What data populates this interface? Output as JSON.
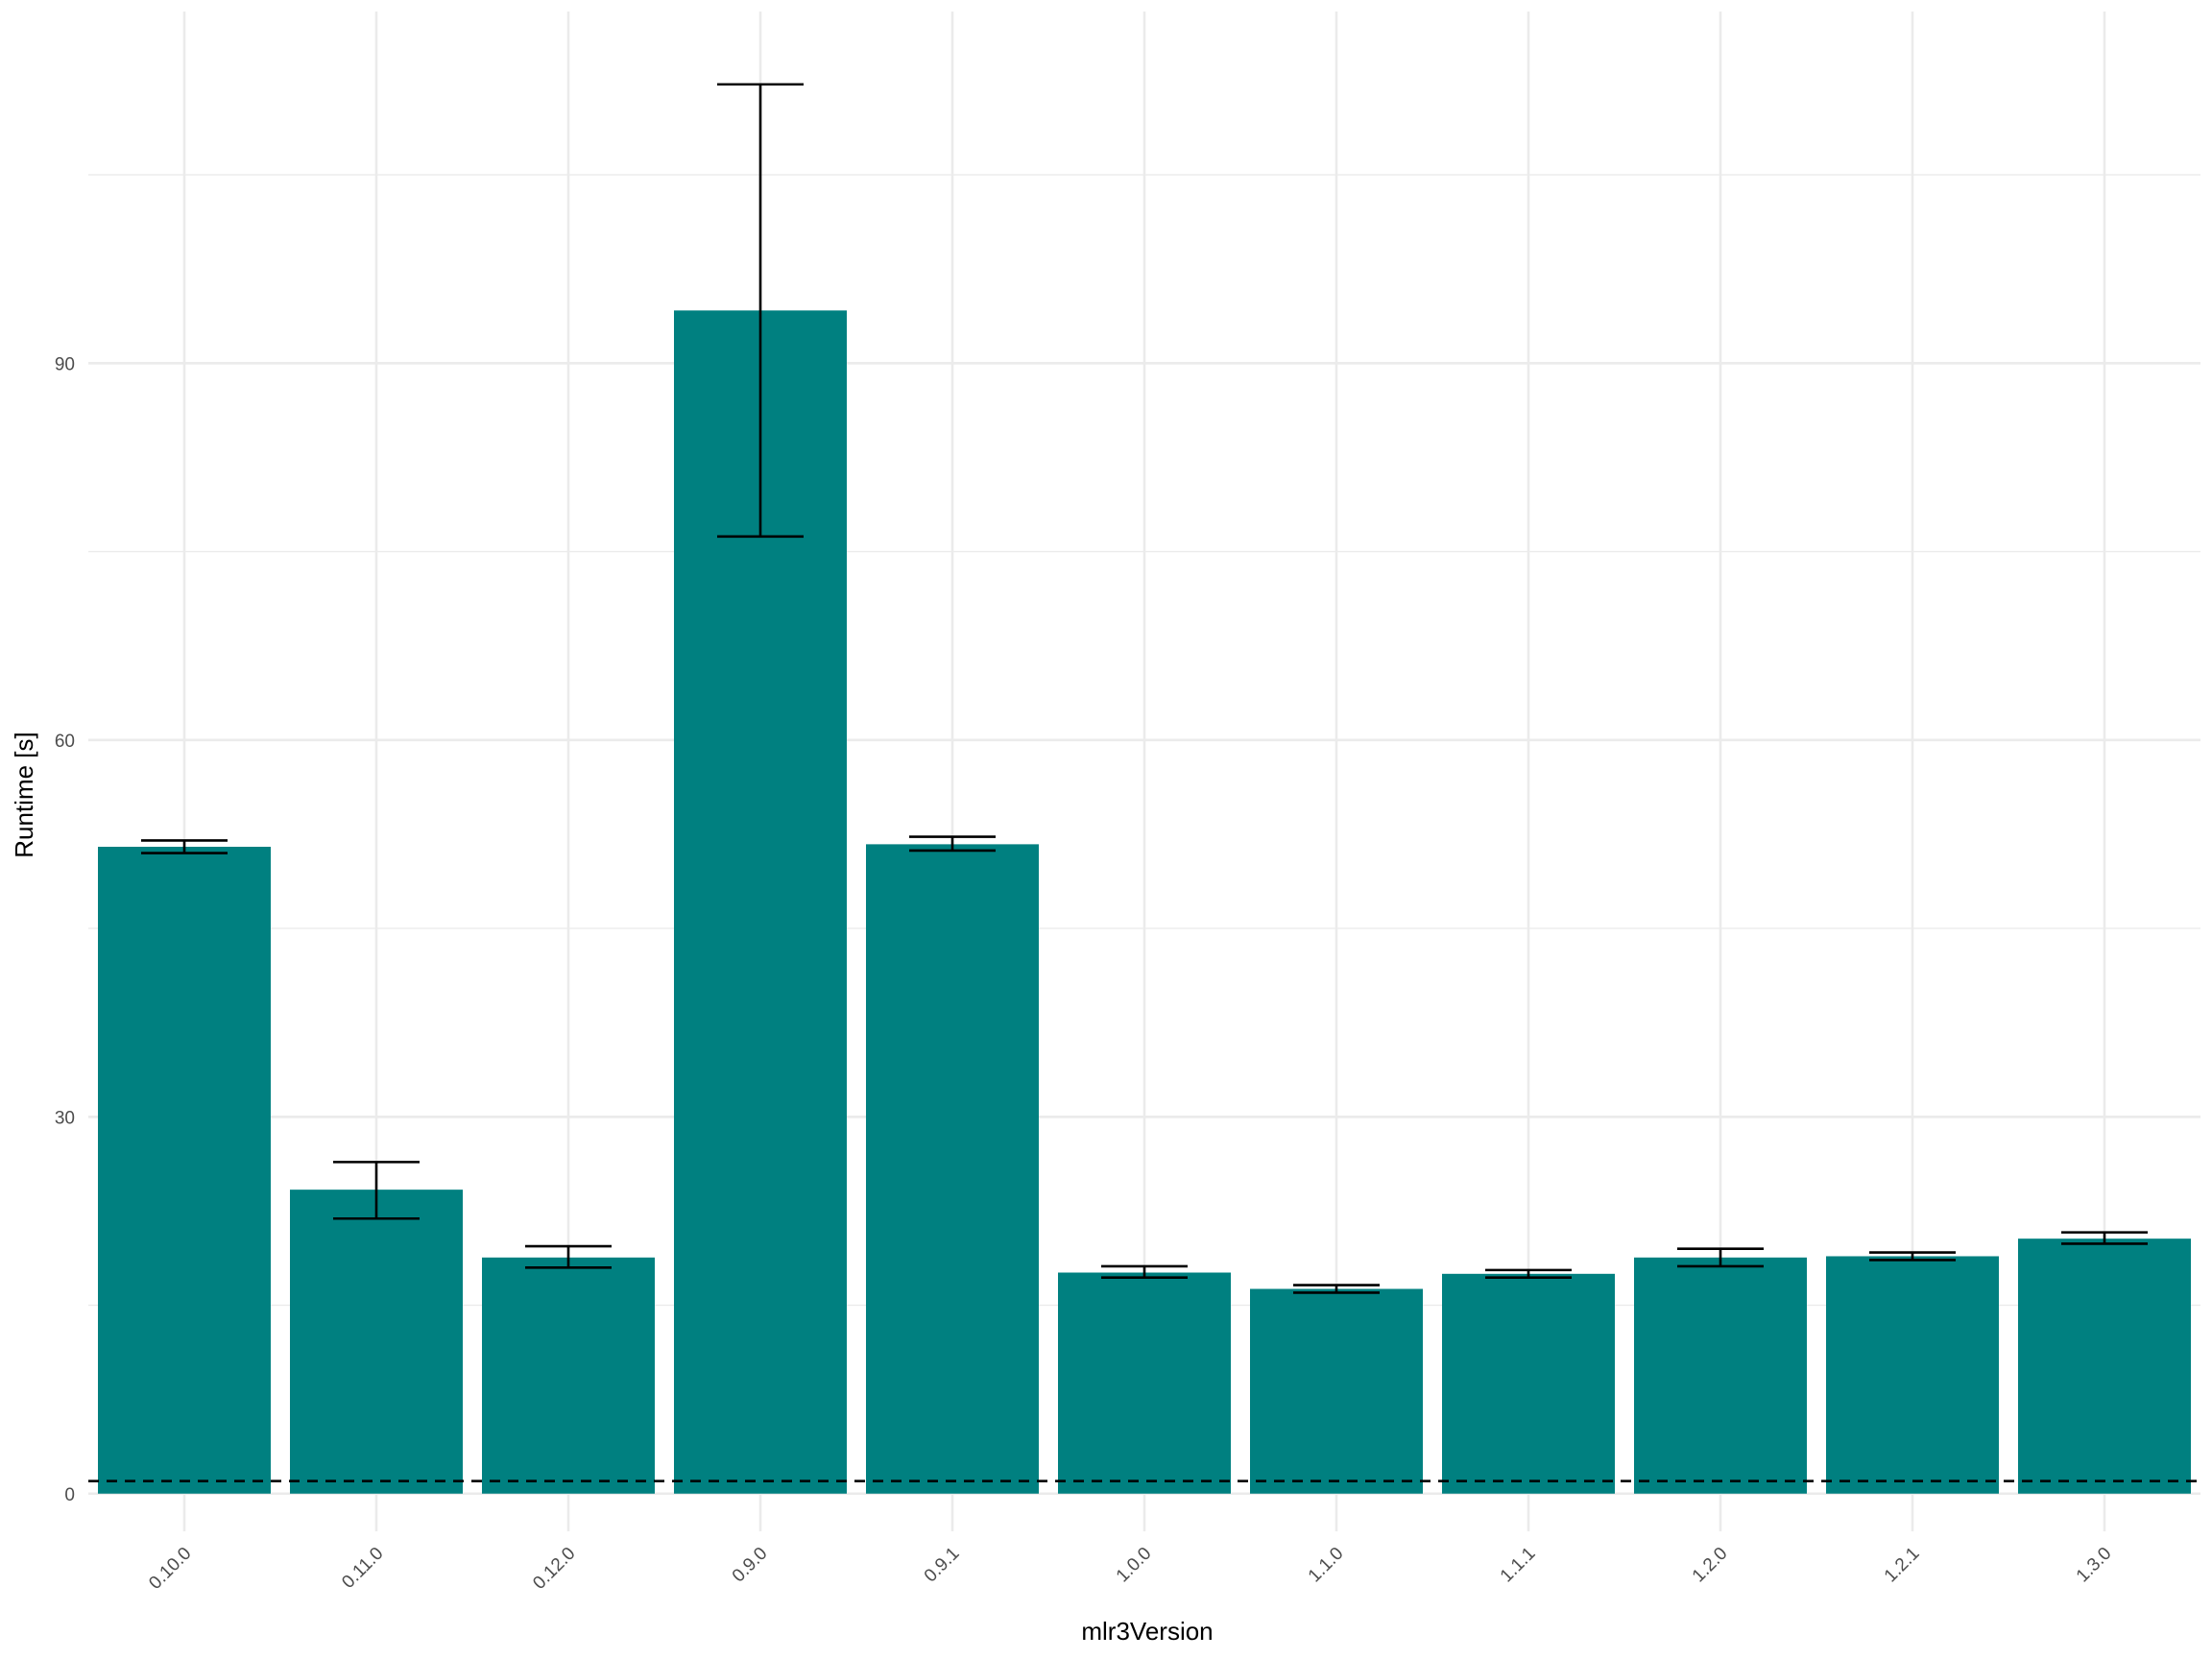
{
  "chart_data": {
    "type": "bar",
    "xlabel": "mlr3Version",
    "ylabel": "Runtime [s]",
    "ylim": [
      -3,
      118
    ],
    "y_ticks": [
      0,
      30,
      60,
      90
    ],
    "y_minor_ticks": [
      15,
      45,
      75,
      105
    ],
    "grid": true,
    "legend": "none",
    "categories": [
      "0.10.0",
      "0.11.0",
      "0.12.0",
      "0.9.0",
      "0.9.1",
      "1.0.0",
      "1.1.0",
      "1.1.1",
      "1.2.0",
      "1.2.1",
      "1.3.0"
    ],
    "values": [
      51.5,
      24.2,
      18.8,
      94.2,
      51.7,
      17.6,
      16.3,
      17.5,
      18.8,
      18.9,
      20.3
    ],
    "error_low": [
      51.0,
      21.9,
      18.0,
      76.2,
      51.2,
      17.2,
      16.0,
      17.2,
      18.1,
      18.6,
      19.9
    ],
    "error_high": [
      52.0,
      26.4,
      19.7,
      112.2,
      52.3,
      18.1,
      16.6,
      17.8,
      19.5,
      19.2,
      20.8
    ],
    "reference_line": {
      "y": 1.0,
      "style": "dashed",
      "color": "#000000"
    },
    "colors": {
      "bar": "#008080",
      "grid": "#ebebeb",
      "errorbar": "#000000"
    }
  }
}
